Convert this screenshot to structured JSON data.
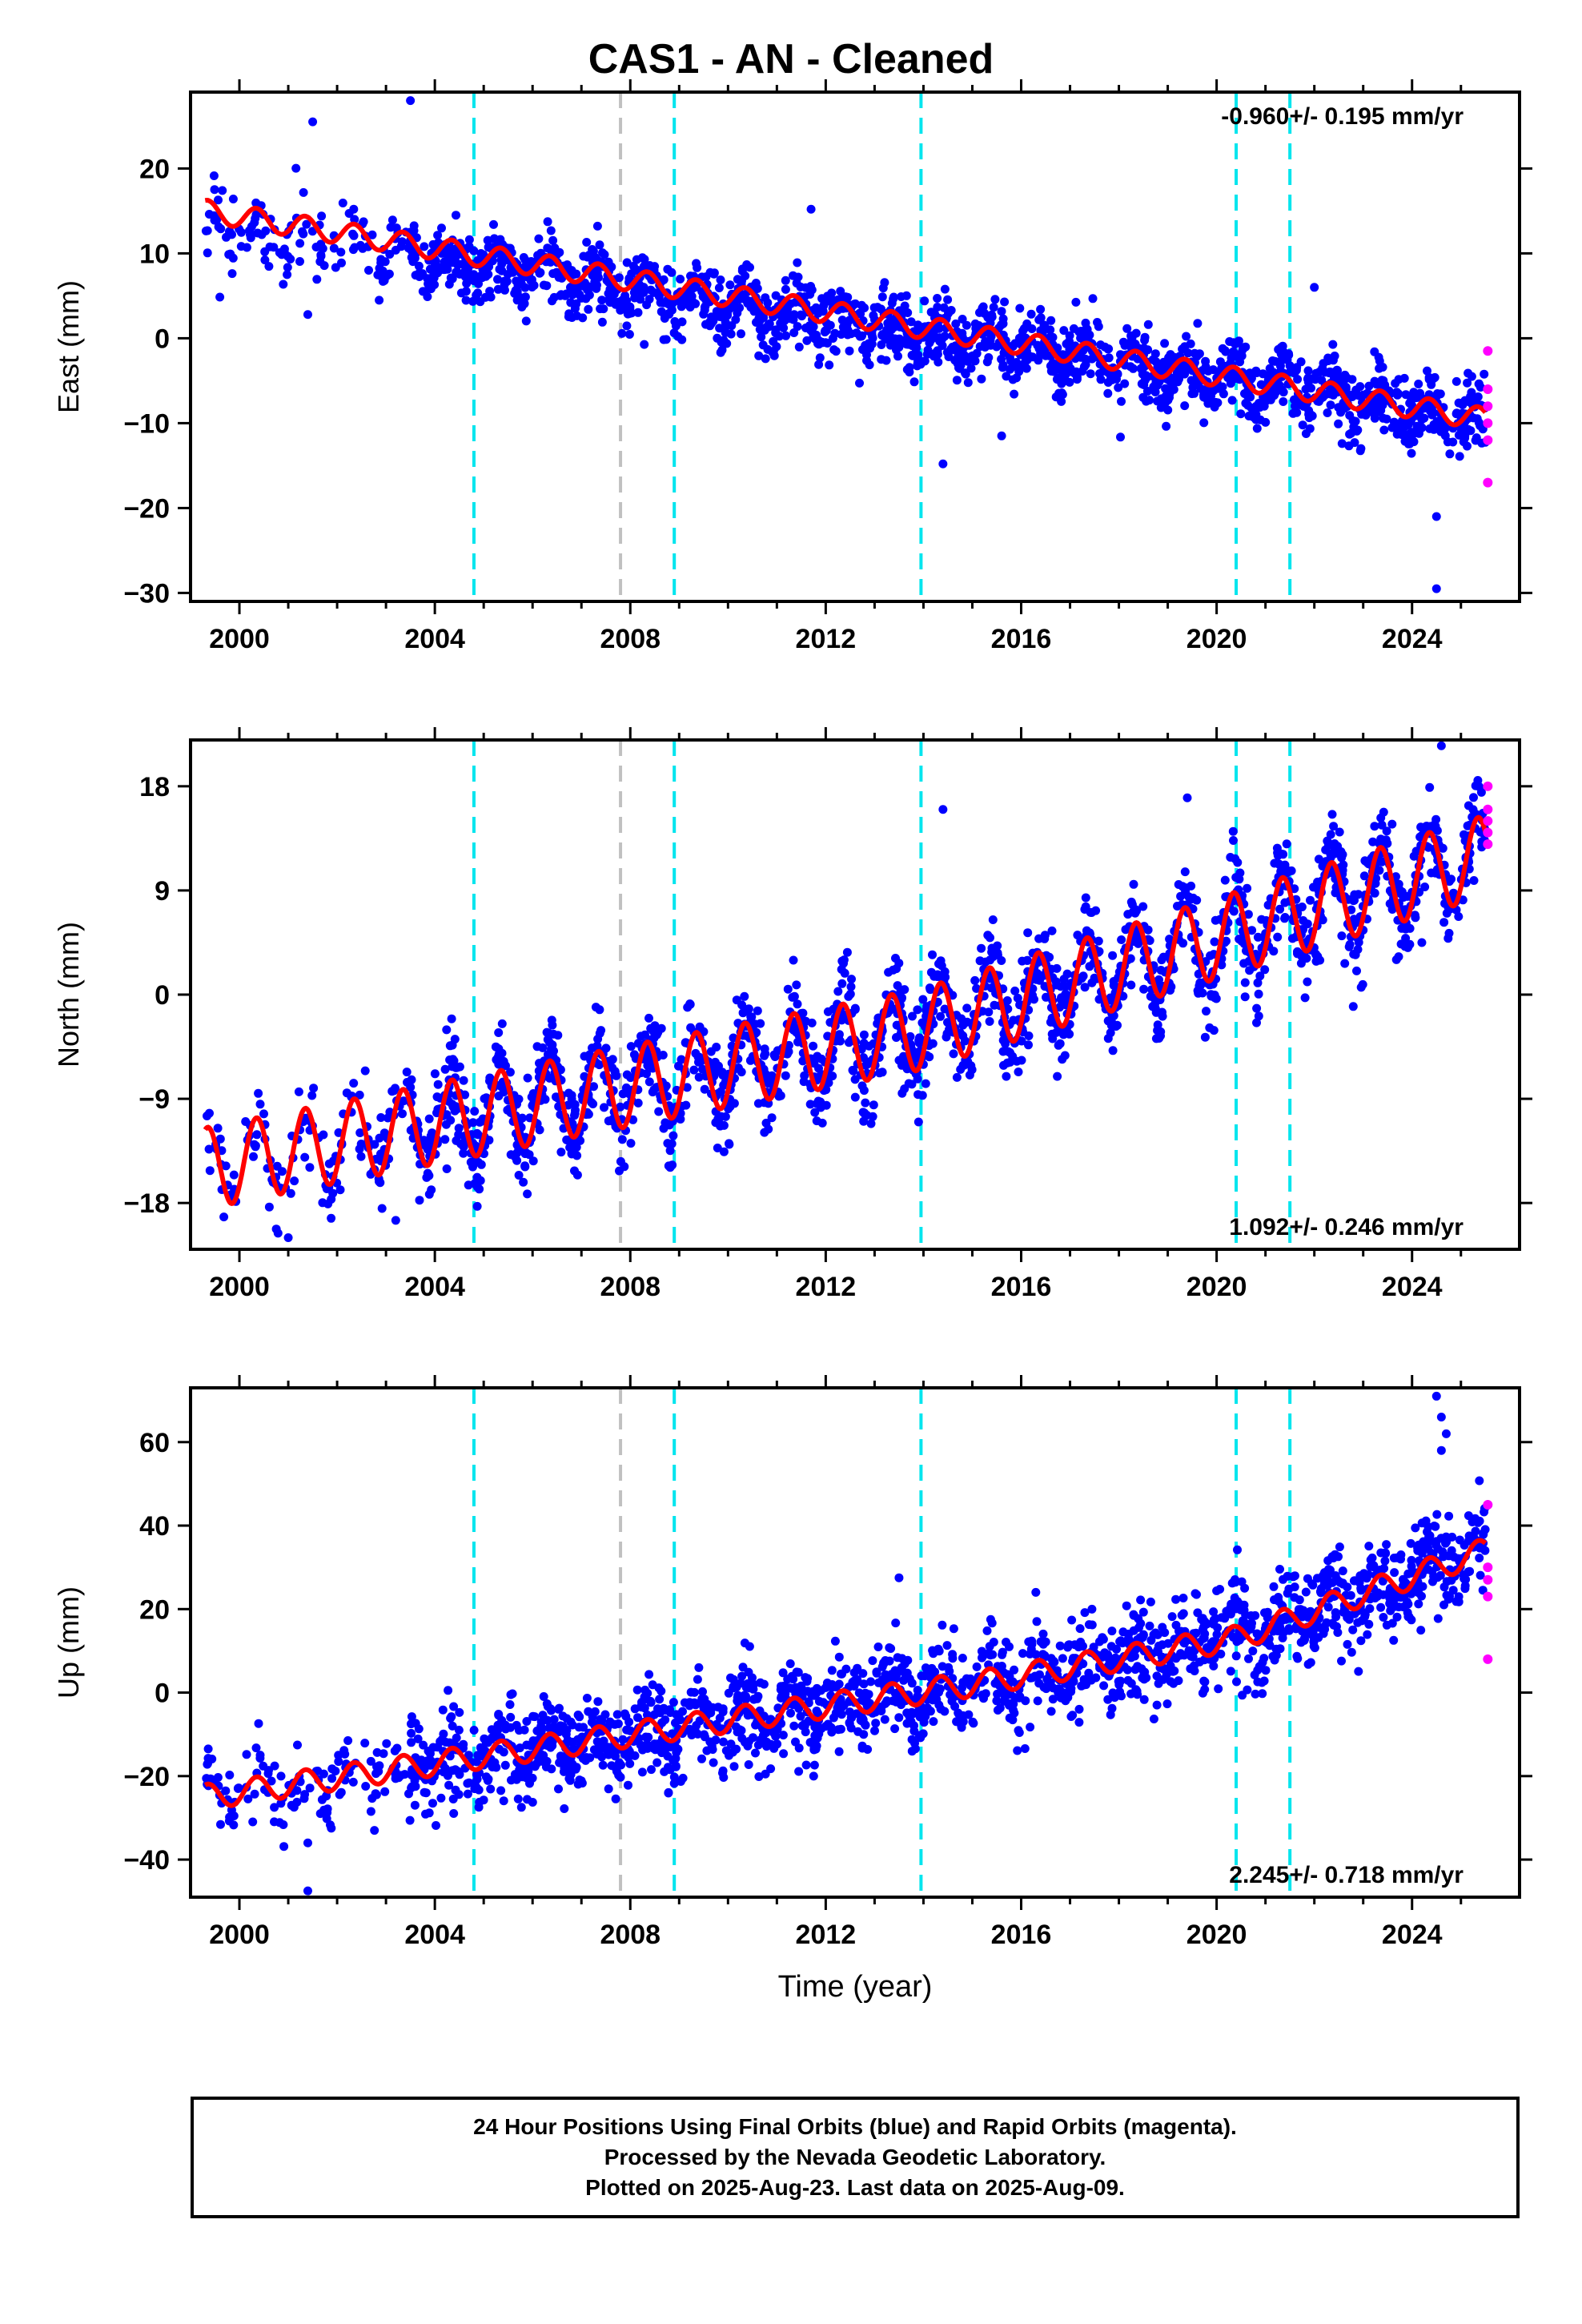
{
  "title": "CAS1  - AN - Cleaned",
  "footer": {
    "line1": "24 Hour Positions Using Final Orbits (blue) and Rapid Orbits (magenta).",
    "line2": "Processed by the Nevada Geodetic Laboratory.",
    "line3": "Plotted on 2025-Aug-23. Last data on 2025-Aug-09."
  },
  "colors": {
    "final_orbits": "#0000ff",
    "rapid_orbits": "#ff00ff",
    "model_fit": "#ff0000",
    "equipment_change": "#00e5ee",
    "other_event": "#c0c0c0"
  },
  "chart_data": [
    {
      "type": "scatter",
      "ylabel": "East (mm)",
      "xlabel": "",
      "xlim": [
        1999,
        2026.2
      ],
      "ylim": [
        -31,
        29
      ],
      "xticks": [
        2000,
        2004,
        2008,
        2012,
        2016,
        2020,
        2024
      ],
      "yticks": [
        -30,
        -20,
        -10,
        0,
        10,
        20
      ],
      "rate_label": "-0.960+/- 0.195 mm/yr",
      "rate_position": "top-right",
      "series": [
        {
          "kind": "final_orbits",
          "trend": [
            [
              1999.3,
              13.5
            ],
            [
              2025.5,
              -9.5
            ]
          ],
          "scatter": 2.0,
          "seasonal": 1.5
        },
        {
          "kind": "rapid_orbits",
          "points": [
            [
              2025.55,
              -1.5
            ],
            [
              2025.55,
              -6
            ],
            [
              2025.55,
              -8
            ],
            [
              2025.55,
              -10
            ],
            [
              2025.55,
              -12
            ],
            [
              2025.55,
              -17
            ]
          ]
        },
        {
          "kind": "model_fit",
          "trend": [
            [
              1999.3,
              15
            ],
            [
              2025.5,
              -9.5
            ]
          ],
          "amplitude": 1.3
        }
      ],
      "outliers": [
        [
          2001.5,
          25.5
        ],
        [
          2003.5,
          28
        ],
        [
          2011.7,
          15.2
        ],
        [
          2014.4,
          -14.8
        ],
        [
          2015.6,
          -11.5
        ],
        [
          2024.5,
          -29.5
        ],
        [
          2024.5,
          -21
        ],
        [
          2001.4,
          2.8
        ],
        [
          2022.0,
          6
        ]
      ],
      "events": [
        {
          "x": 2004.8,
          "kind": "equipment_change"
        },
        {
          "x": 2007.8,
          "kind": "other_event"
        },
        {
          "x": 2008.9,
          "kind": "equipment_change"
        },
        {
          "x": 2013.95,
          "kind": "equipment_change"
        },
        {
          "x": 2020.4,
          "kind": "equipment_change"
        },
        {
          "x": 2021.5,
          "kind": "equipment_change"
        }
      ]
    },
    {
      "type": "scatter",
      "ylabel": "North (mm)",
      "xlabel": "",
      "xlim": [
        1999,
        2026.2
      ],
      "ylim": [
        -22,
        22
      ],
      "xticks": [
        2000,
        2004,
        2008,
        2012,
        2016,
        2020,
        2024
      ],
      "yticks": [
        -18,
        -9,
        0,
        9,
        18
      ],
      "rate_label": "1.092+/- 0.246 mm/yr",
      "rate_position": "bottom-right",
      "series": [
        {
          "kind": "final_orbits",
          "trend": [
            [
              1999.3,
              -15
            ],
            [
              2013.95,
              -3
            ],
            [
              2025.5,
              12
            ]
          ],
          "scatter": 2.0,
          "seasonal": 3.5
        },
        {
          "kind": "rapid_orbits",
          "points": [
            [
              2025.55,
              18
            ],
            [
              2025.55,
              16
            ],
            [
              2025.55,
              15
            ],
            [
              2025.55,
              14
            ],
            [
              2025.55,
              13
            ]
          ]
        },
        {
          "kind": "model_fit",
          "trend": [
            [
              1999.3,
              -15
            ],
            [
              2013.95,
              -3
            ],
            [
              2025.5,
              12
            ]
          ],
          "amplitude": 3.5
        }
      ],
      "outliers": [
        [
          2001.0,
          -21
        ],
        [
          2003.2,
          -19.5
        ],
        [
          2014.4,
          16.0
        ],
        [
          2013.9,
          -11
        ],
        [
          2019.4,
          17
        ],
        [
          2024.6,
          21.5
        ],
        [
          2024.2,
          4.5
        ]
      ],
      "events": [
        {
          "x": 2004.8,
          "kind": "equipment_change"
        },
        {
          "x": 2007.8,
          "kind": "other_event"
        },
        {
          "x": 2008.9,
          "kind": "equipment_change"
        },
        {
          "x": 2013.95,
          "kind": "equipment_change"
        },
        {
          "x": 2020.4,
          "kind": "equipment_change"
        },
        {
          "x": 2021.5,
          "kind": "equipment_change"
        }
      ]
    },
    {
      "type": "scatter",
      "ylabel": "Up (mm)",
      "xlabel": "Time (year)",
      "xlim": [
        1999,
        2026.2
      ],
      "ylim": [
        -49,
        73
      ],
      "xticks": [
        2000,
        2004,
        2008,
        2012,
        2016,
        2020,
        2024
      ],
      "yticks": [
        -40,
        -20,
        0,
        20,
        40,
        60
      ],
      "rate_label": "2.245+/- 0.718 mm/yr",
      "rate_position": "bottom-right",
      "series": [
        {
          "kind": "final_orbits",
          "trend": [
            [
              1999.3,
              -25
            ],
            [
              2015.0,
              2
            ],
            [
              2020.4,
              13
            ],
            [
              2025.5,
              34
            ]
          ],
          "scatter": 5.5,
          "seasonal": 3.5
        },
        {
          "kind": "rapid_orbits",
          "points": [
            [
              2025.55,
              45
            ],
            [
              2025.55,
              30
            ],
            [
              2025.55,
              27
            ],
            [
              2025.55,
              23
            ],
            [
              2025.55,
              8
            ]
          ]
        },
        {
          "kind": "model_fit",
          "trend": [
            [
              1999.3,
              -25
            ],
            [
              2015.0,
              2
            ],
            [
              2020.4,
              13
            ],
            [
              2025.5,
              34
            ]
          ],
          "amplitude": 3.0
        }
      ],
      "outliers": [
        [
          2001.4,
          -47.5
        ],
        [
          2001.4,
          -36
        ],
        [
          2013.5,
          27.5
        ],
        [
          2024.5,
          71
        ],
        [
          2024.6,
          66
        ],
        [
          2024.7,
          62
        ],
        [
          2024.6,
          58
        ]
      ],
      "events": [
        {
          "x": 2004.8,
          "kind": "equipment_change"
        },
        {
          "x": 2007.8,
          "kind": "other_event"
        },
        {
          "x": 2008.9,
          "kind": "equipment_change"
        },
        {
          "x": 2013.95,
          "kind": "equipment_change"
        },
        {
          "x": 2020.4,
          "kind": "equipment_change"
        },
        {
          "x": 2021.5,
          "kind": "equipment_change"
        }
      ]
    }
  ]
}
